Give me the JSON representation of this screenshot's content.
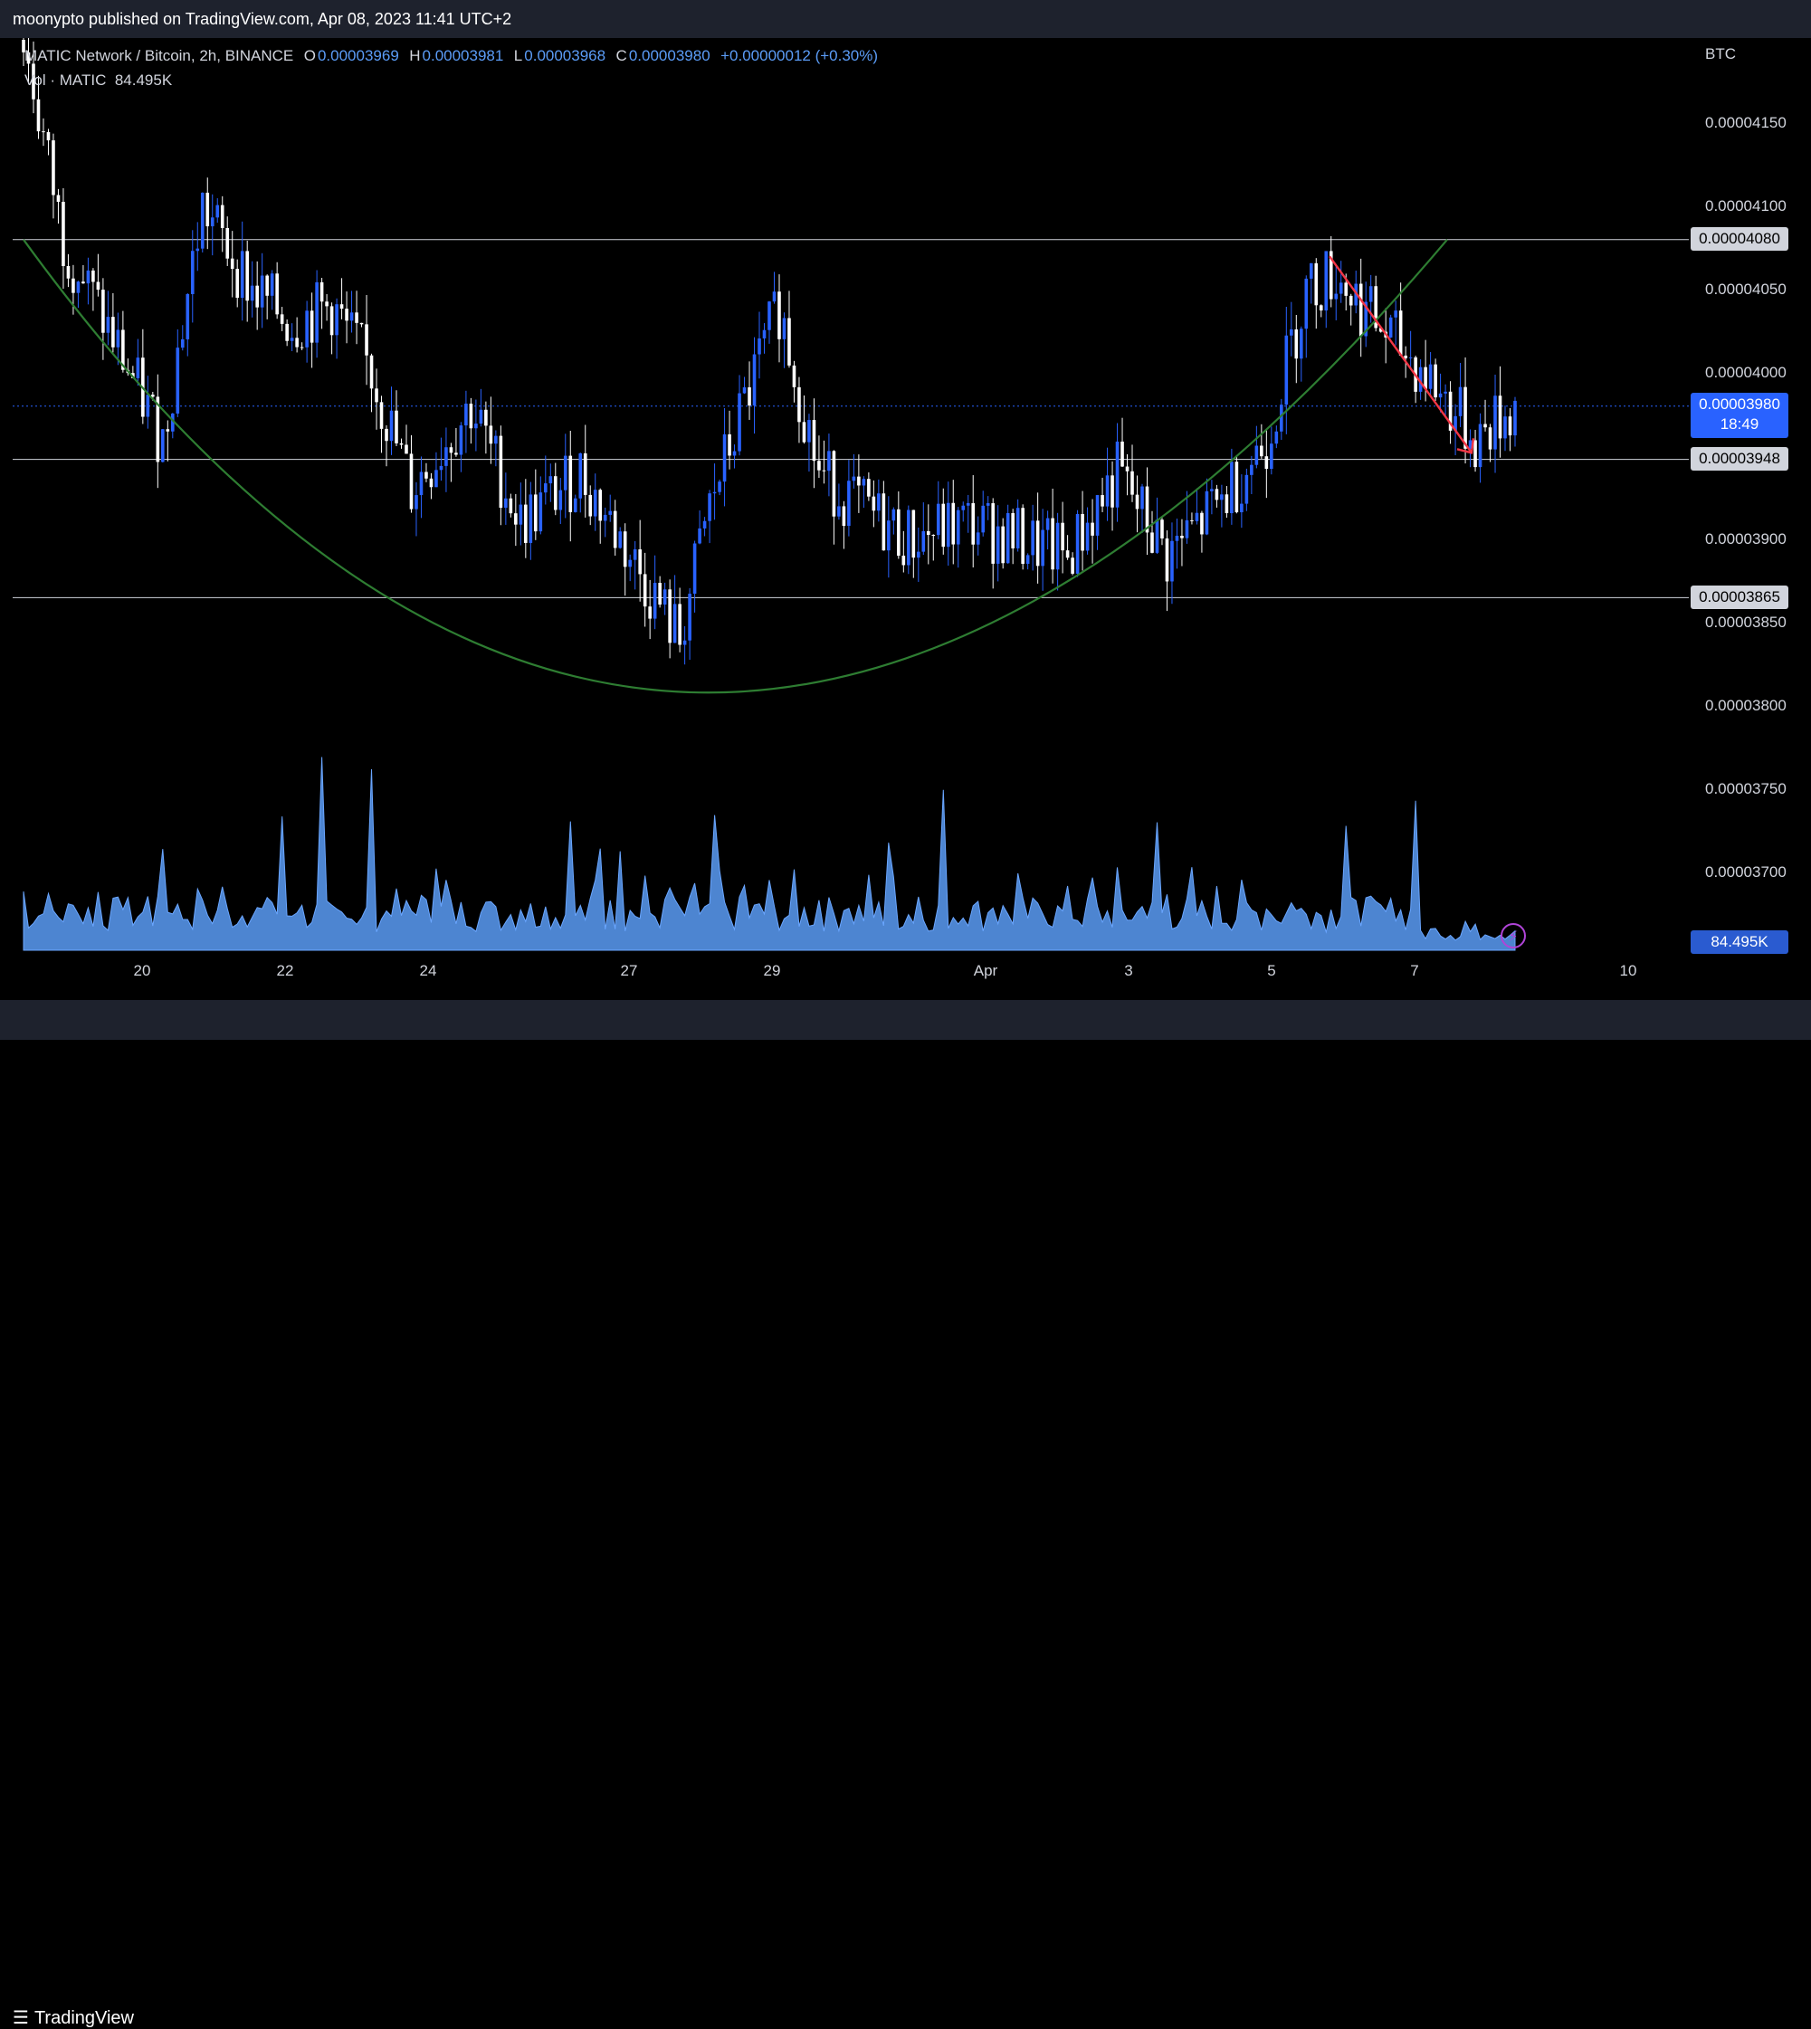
{
  "header": {
    "published": "moonypto published on TradingView.com, Apr 08, 2023 11:41 UTC+2"
  },
  "legend": {
    "symbol": "MATIC Network / Bitcoin, 2h, BINANCE",
    "o_label": "O",
    "o_value": "0.00003969",
    "h_label": "H",
    "h_value": "0.00003981",
    "l_label": "L",
    "l_value": "0.00003968",
    "c_label": "C",
    "c_value": "0.00003980",
    "change": "+0.00000012 (+0.30%)",
    "vol_label": "Vol · MATIC",
    "vol_value": "84.495K"
  },
  "axis": {
    "unit": "BTC",
    "ticks": [
      "0.00004150",
      "0.00004100",
      "0.00004050",
      "0.00004000",
      "0.00003900",
      "0.00003850",
      "0.00003800",
      "0.00003750",
      "0.00003700"
    ],
    "level_tags": [
      "0.00004080",
      "0.00003948",
      "0.00003865"
    ],
    "current_price": "0.00003980",
    "countdown": "18:49",
    "volume_tag": "84.495K"
  },
  "x_labels": [
    "20",
    "22",
    "24",
    "27",
    "29",
    "Apr",
    "3",
    "5",
    "7",
    "10"
  ],
  "footer": {
    "brand": "TradingView"
  },
  "colors": {
    "bull": "#2962ff",
    "bear": "#ffffff",
    "volume": "#5b9cf6",
    "curve": "#2e7d32",
    "arrow": "#f23645",
    "level": "#d1d4dc"
  },
  "chart_data": {
    "type": "candlestick",
    "title": "MATIC Network / Bitcoin, 2h, BINANCE",
    "ylabel": "BTC",
    "ylim": [
      3.66e-05,
      4.2e-05
    ],
    "horizontal_levels": [
      4.08e-05,
      3.948e-05,
      3.865e-05
    ],
    "current_price": 3.98e-05,
    "x_tick_labels": [
      "20",
      "22",
      "24",
      "27",
      "29",
      "Apr",
      "3",
      "5",
      "7",
      "10"
    ],
    "anchors": [
      {
        "t": 0,
        "p": 4.2e-05
      },
      {
        "t": 8,
        "p": 4.08e-05
      },
      {
        "t": 18,
        "p": 4.02e-05
      },
      {
        "t": 28,
        "p": 3.96e-05
      },
      {
        "t": 36,
        "p": 4.1e-05
      },
      {
        "t": 46,
        "p": 4.05e-05
      },
      {
        "t": 54,
        "p": 4.03e-05
      },
      {
        "t": 62,
        "p": 4.04e-05
      },
      {
        "t": 70,
        "p": 4e-05
      },
      {
        "t": 78,
        "p": 3.93e-05
      },
      {
        "t": 90,
        "p": 3.98e-05
      },
      {
        "t": 100,
        "p": 3.91e-05
      },
      {
        "t": 112,
        "p": 3.94e-05
      },
      {
        "t": 122,
        "p": 3.89e-05
      },
      {
        "t": 132,
        "p": 3.84e-05
      },
      {
        "t": 138,
        "p": 3.92e-05
      },
      {
        "t": 146,
        "p": 3.99e-05
      },
      {
        "t": 152,
        "p": 4.04e-05
      },
      {
        "t": 160,
        "p": 3.94e-05
      },
      {
        "t": 168,
        "p": 3.92e-05
      },
      {
        "t": 178,
        "p": 3.9e-05
      },
      {
        "t": 190,
        "p": 3.91e-05
      },
      {
        "t": 200,
        "p": 3.9e-05
      },
      {
        "t": 210,
        "p": 3.89e-05
      },
      {
        "t": 220,
        "p": 3.94e-05
      },
      {
        "t": 230,
        "p": 3.89e-05
      },
      {
        "t": 240,
        "p": 3.92e-05
      },
      {
        "t": 250,
        "p": 3.96e-05
      },
      {
        "t": 258,
        "p": 4.05e-05
      },
      {
        "t": 264,
        "p": 4.06e-05
      },
      {
        "t": 272,
        "p": 4.03e-05
      },
      {
        "t": 282,
        "p": 4e-05
      },
      {
        "t": 292,
        "p": 3.96e-05
      },
      {
        "t": 300,
        "p": 3.98e-05
      }
    ],
    "bars": 301,
    "volume_last": "84.495K"
  }
}
